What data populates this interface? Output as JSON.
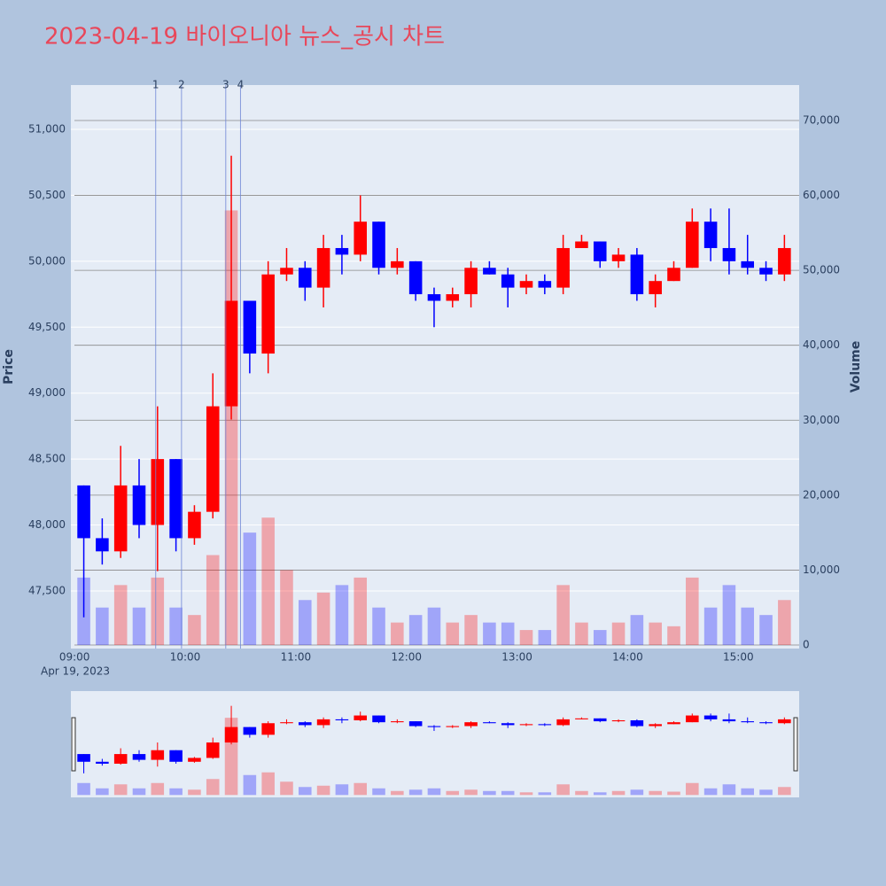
{
  "chart_data": {
    "type": "candlestick",
    "title": "2023-04-19 바이오니아 뉴스_공시 차트",
    "y_title": "Price",
    "y2_title": "Volume",
    "x_date_label": "Apr 19, 2023",
    "increasing_color": "#ff0000",
    "decreasing_color": "#0000ff",
    "x": [
      "09:00",
      "09:10",
      "09:20",
      "09:30",
      "09:40",
      "09:50",
      "10:00",
      "10:10",
      "10:20",
      "10:30",
      "10:40",
      "10:50",
      "11:00",
      "11:10",
      "11:20",
      "11:30",
      "11:40",
      "11:50",
      "12:00",
      "12:10",
      "12:20",
      "12:30",
      "12:40",
      "12:50",
      "13:00",
      "13:10",
      "13:20",
      "13:30",
      "13:40",
      "13:50",
      "14:00",
      "14:10",
      "14:20",
      "14:30",
      "14:40",
      "14:50",
      "15:00",
      "15:10",
      "15:20"
    ],
    "open": [
      48300,
      47900,
      47800,
      48300,
      48000,
      48500,
      47900,
      48100,
      48900,
      49700,
      49300,
      49900,
      49950,
      49800,
      50100,
      50050,
      50300,
      49950,
      50000,
      49750,
      49700,
      49750,
      49950,
      49900,
      49800,
      49850,
      49800,
      50100,
      50150,
      50000,
      50050,
      49750,
      49850,
      49950,
      50300,
      50100,
      50000,
      49950,
      49900
    ],
    "high": [
      48300,
      48050,
      48600,
      48500,
      48900,
      48500,
      48150,
      49150,
      50800,
      49700,
      50000,
      50100,
      50000,
      50200,
      50200,
      50500,
      50300,
      50100,
      50000,
      49800,
      49800,
      50000,
      50000,
      49950,
      49900,
      49900,
      50200,
      50200,
      50150,
      50100,
      50100,
      49900,
      50000,
      50400,
      50400,
      50400,
      50200,
      50000,
      50200
    ],
    "low": [
      47300,
      47700,
      47750,
      47900,
      47650,
      47800,
      47850,
      48050,
      48800,
      49150,
      49150,
      49850,
      49700,
      49650,
      49900,
      50000,
      49900,
      49900,
      49700,
      49500,
      49650,
      49650,
      49900,
      49650,
      49750,
      49750,
      49750,
      50100,
      49950,
      49950,
      49700,
      49650,
      49850,
      49950,
      50000,
      49900,
      49900,
      49850,
      49850
    ],
    "close": [
      47900,
      47800,
      48300,
      48000,
      48500,
      47900,
      48100,
      48900,
      49700,
      49300,
      49900,
      49950,
      49800,
      50100,
      50050,
      50300,
      49950,
      50000,
      49750,
      49700,
      49750,
      49950,
      49900,
      49800,
      49850,
      49800,
      50100,
      50150,
      50000,
      50050,
      49750,
      49850,
      49950,
      50300,
      50100,
      50000,
      49950,
      49900,
      50100
    ],
    "volume": [
      9000,
      5000,
      8000,
      5000,
      9000,
      5000,
      4000,
      12000,
      58000,
      15000,
      17000,
      10000,
      6000,
      7000,
      8000,
      9000,
      5000,
      3000,
      4000,
      5000,
      3000,
      4000,
      3000,
      3000,
      2000,
      2000,
      8000,
      3000,
      2000,
      3000,
      4000,
      3000,
      2500,
      9000,
      5000,
      8000,
      5000,
      4000,
      6000
    ],
    "xlim": [
      "08:58",
      "15:33"
    ],
    "xticks": [
      "09:00",
      "10:00",
      "11:00",
      "12:00",
      "13:00",
      "14:00",
      "15:00"
    ],
    "ylim": [
      47063,
      51336
    ],
    "yticks": [
      {
        "value": 47500,
        "label": "47,500"
      },
      {
        "value": 48000,
        "label": "48,000"
      },
      {
        "value": 48500,
        "label": "48,500"
      },
      {
        "value": 49000,
        "label": "49,000"
      },
      {
        "value": 49500,
        "label": "49,500"
      },
      {
        "value": 50000,
        "label": "50,000"
      },
      {
        "value": 50500,
        "label": "50,500"
      },
      {
        "value": 51000,
        "label": "51,000"
      }
    ],
    "y2lim": [
      -473,
      74728
    ],
    "y2ticks": [
      0,
      {
        "value": 10000,
        "label": "10,000"
      },
      {
        "value": 20000,
        "label": "20,000"
      },
      {
        "value": 30000,
        "label": "30,000"
      },
      {
        "value": 40000,
        "label": "40,000"
      },
      {
        "value": 50000,
        "label": "50,000"
      },
      {
        "value": 60000,
        "label": "60,000"
      },
      {
        "value": 70000,
        "label": "70,000"
      }
    ],
    "annotations": [
      {
        "x": "09:44",
        "label": "1"
      },
      {
        "x": "09:58",
        "label": "2"
      },
      {
        "x": "10:22",
        "label": "3"
      },
      {
        "x": "10:30",
        "label": "4"
      }
    ],
    "grid": true,
    "rangeslider": true
  }
}
